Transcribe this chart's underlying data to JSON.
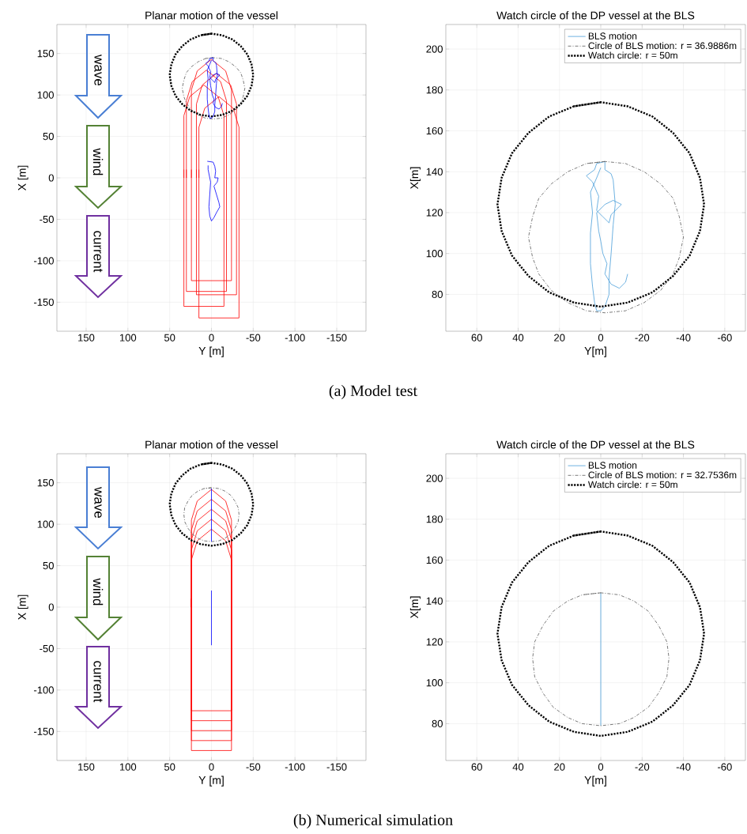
{
  "chart_data": [
    {
      "type": "line",
      "title": "Planar motion of the vessel",
      "xlabel": "Y [m]",
      "ylabel": "X [m]",
      "xlim": [
        185,
        -185
      ],
      "ylim": [
        -185,
        185
      ],
      "xticks": [
        150,
        100,
        50,
        0,
        -50,
        -100,
        -150
      ],
      "yticks": [
        -150,
        -100,
        -50,
        0,
        50,
        100,
        150
      ],
      "grid": true,
      "annotations": [
        "wave",
        "wind",
        "current",
        "(a) Model test"
      ],
      "series": [
        {
          "color": "#ff0000",
          "line_style": "solid",
          "x": [
            24,
            24,
            17,
            0,
            -17,
            -24,
            -24,
            24,
            24
          ],
          "values": [
            0,
            106,
            129,
            143,
            129,
            106,
            -124,
            -124,
            10
          ]
        },
        {
          "color": "#ff0000",
          "line_style": "solid",
          "x": [
            30,
            30,
            23,
            6,
            -11,
            -18,
            -18,
            30,
            30
          ],
          "values": [
            0,
            93,
            116,
            130,
            116,
            93,
            -137,
            -137,
            10
          ]
        },
        {
          "color": "#ff0000",
          "line_style": "solid",
          "x": [
            18,
            18,
            11,
            -6,
            -23,
            -30,
            -30,
            18,
            18
          ],
          "values": [
            0,
            89,
            112,
            126,
            112,
            89,
            -141,
            -141,
            10
          ]
        },
        {
          "color": "#ff0000",
          "line_style": "solid",
          "x": [
            33,
            33,
            26,
            9,
            -8,
            -15,
            -15,
            33,
            33
          ],
          "values": [
            0,
            75,
            98,
            112,
            98,
            75,
            -155,
            -155,
            10
          ]
        },
        {
          "color": "#ff0000",
          "line_style": "solid",
          "x": [
            15,
            15,
            8,
            -9,
            -26,
            -33,
            -33,
            15,
            15
          ],
          "values": [
            0,
            61,
            84,
            98,
            84,
            61,
            -169,
            -169,
            10
          ]
        },
        {
          "color": "#595959",
          "line_style": "dashdot",
          "x": [
            -2,
            7,
            16,
            24,
            30,
            33,
            35,
            33,
            30,
            24,
            16,
            7,
            -2,
            -12,
            -21,
            -29,
            -35,
            -38,
            -40,
            -38,
            -35,
            -29,
            -21,
            -12,
            -2,
            7
          ],
          "values": [
            145,
            144,
            140,
            134,
            127,
            118,
            108,
            98,
            90,
            82,
            76,
            72,
            71,
            72,
            76,
            82,
            90,
            98,
            108,
            118,
            127,
            134,
            140,
            144,
            145,
            144
          ]
        },
        {
          "color": "#000000",
          "line_style": "dotted",
          "x": [
            0,
            13,
            25,
            35,
            43,
            48,
            50,
            48,
            43,
            35,
            25,
            13,
            0,
            -13,
            -25,
            -35,
            -43,
            -48,
            -50,
            -48,
            -43,
            -35,
            -25,
            -13,
            0,
            13
          ],
          "values": [
            174,
            172,
            167,
            159,
            149,
            137,
            124,
            111,
            99,
            89,
            81,
            76,
            74,
            76,
            81,
            89,
            99,
            111,
            124,
            137,
            149,
            159,
            167,
            172,
            174,
            172
          ]
        },
        {
          "color": "#0000ff",
          "line_style": "solid",
          "x": [
            -13,
            -12,
            -9,
            -5,
            -2,
            -3,
            -1,
            0,
            1,
            2,
            -2,
            -6,
            -10,
            -8,
            -5,
            -4,
            -1,
            2,
            1,
            4,
            7,
            3,
            2,
            -2,
            -2,
            -5,
            -6,
            -7,
            -6,
            -5,
            -4,
            -4,
            -2,
            0,
            2,
            3,
            4,
            5,
            5,
            4,
            5,
            2,
            0
          ],
          "values": [
            90,
            86,
            83,
            85,
            90,
            95,
            100,
            106,
            111,
            120,
            124,
            126,
            124,
            122,
            119,
            115,
            118,
            121,
            128,
            135,
            138,
            141,
            144,
            145,
            141,
            139,
            136,
            124,
            114,
            100,
            88,
            80,
            74,
            72,
            72,
            76,
            84,
            95,
            110,
            120,
            130,
            137,
            142
          ]
        },
        {
          "color": "#0000ff",
          "line_style": "solid",
          "x": [
            5,
            -2,
            -4,
            -5,
            -4,
            -8,
            -7,
            -3,
            -9,
            -10,
            -6,
            -3,
            0,
            2,
            3,
            2,
            1,
            4,
            4
          ],
          "values": [
            20,
            19,
            14,
            8,
            0,
            0,
            -5,
            -10,
            -30,
            -35,
            -42,
            -48,
            -52,
            -46,
            -35,
            -20,
            -5,
            10,
            15
          ]
        }
      ]
    },
    {
      "type": "line",
      "title": "Watch circle of the DP vessel at the BLS",
      "xlabel": "Y[m]",
      "ylabel": "X[m]",
      "xlim": [
        75,
        -70
      ],
      "ylim": [
        62,
        212
      ],
      "xticks": [
        60,
        40,
        20,
        0,
        -20,
        -40,
        -60
      ],
      "yticks": [
        80,
        100,
        120,
        140,
        160,
        180,
        200
      ],
      "grid": true,
      "legend": "top right",
      "series": [
        {
          "name": "BLS motion",
          "color": "#4a9ed9",
          "line_style": "solid",
          "x": [
            -13,
            -12,
            -9,
            -5,
            -2,
            -3,
            -1,
            0,
            1,
            2,
            -2,
            -6,
            -10,
            -8,
            -5,
            -4,
            -1,
            2,
            1,
            4,
            7,
            3,
            2,
            -2,
            -2,
            -5,
            -6,
            -7,
            -6,
            -5,
            -4,
            -4,
            -2,
            0,
            2,
            3,
            4,
            5,
            5,
            4,
            5,
            2,
            0
          ],
          "values": [
            90,
            86,
            83,
            85,
            90,
            95,
            100,
            106,
            111,
            120,
            124,
            126,
            124,
            122,
            119,
            115,
            118,
            121,
            128,
            135,
            138,
            141,
            144,
            145,
            141,
            139,
            136,
            124,
            114,
            100,
            88,
            80,
            74,
            72,
            72,
            76,
            84,
            95,
            110,
            120,
            130,
            137,
            142
          ]
        },
        {
          "name": "Circle of BLS motion: r = 36.9886m",
          "color": "#595959",
          "line_style": "dashdot",
          "x": [
            -2,
            7,
            16,
            24,
            30,
            33,
            35,
            33,
            30,
            24,
            16,
            7,
            -2,
            -12,
            -21,
            -29,
            -35,
            -38,
            -40,
            -38,
            -35,
            -29,
            -21,
            -12,
            -2,
            7
          ],
          "values": [
            145,
            144,
            140,
            134,
            127,
            118,
            108,
            98,
            90,
            82,
            76,
            72,
            71,
            72,
            76,
            82,
            90,
            98,
            108,
            118,
            127,
            134,
            140,
            144,
            145,
            144
          ]
        },
        {
          "name": "Watch circle: r = 50m",
          "color": "#000000",
          "line_style": "dotted",
          "x": [
            0,
            13,
            25,
            35,
            43,
            48,
            50,
            48,
            43,
            35,
            25,
            13,
            0,
            -13,
            -25,
            -35,
            -43,
            -48,
            -50,
            -48,
            -43,
            -35,
            -25,
            -13,
            0,
            13
          ],
          "values": [
            174,
            172,
            167,
            159,
            149,
            137,
            124,
            111,
            99,
            89,
            81,
            76,
            74,
            76,
            81,
            89,
            99,
            111,
            124,
            137,
            149,
            159,
            167,
            172,
            174,
            172
          ]
        }
      ]
    },
    {
      "type": "line",
      "title": "Planar motion of the vessel",
      "xlabel": "Y [m]",
      "ylabel": "X [m]",
      "xlim": [
        185,
        -185
      ],
      "ylim": [
        -185,
        185
      ],
      "xticks": [
        150,
        100,
        50,
        0,
        -50,
        -100,
        -150
      ],
      "yticks": [
        -150,
        -100,
        -50,
        0,
        50,
        100,
        150
      ],
      "grid": true,
      "annotations": [
        "wave",
        "wind",
        "current",
        "(b) Numerical simulation"
      ],
      "series": [
        {
          "color": "#ff0000",
          "line_style": "solid",
          "x": [
            24,
            24,
            17,
            0,
            -17,
            -24,
            -24,
            24,
            24
          ],
          "values": [
            0,
            105,
            128,
            142,
            128,
            105,
            -125,
            -125,
            10
          ]
        },
        {
          "color": "#ff0000",
          "line_style": "solid",
          "x": [
            24,
            24,
            17,
            0,
            -17,
            -24,
            -24,
            24,
            24
          ],
          "values": [
            0,
            93,
            116,
            130,
            116,
            93,
            -137,
            -137,
            10
          ]
        },
        {
          "color": "#ff0000",
          "line_style": "solid",
          "x": [
            24,
            24,
            17,
            0,
            -17,
            -24,
            -24,
            24,
            24
          ],
          "values": [
            0,
            81,
            104,
            118,
            104,
            81,
            -149,
            -149,
            10
          ]
        },
        {
          "color": "#ff0000",
          "line_style": "solid",
          "x": [
            24,
            24,
            17,
            0,
            -17,
            -24,
            -24,
            24,
            24
          ],
          "values": [
            0,
            69,
            92,
            106,
            92,
            69,
            -161,
            -161,
            10
          ]
        },
        {
          "color": "#ff0000",
          "line_style": "solid",
          "x": [
            24,
            24,
            17,
            0,
            -17,
            -24,
            -24,
            24,
            24
          ],
          "values": [
            0,
            57,
            80,
            94,
            80,
            57,
            -173,
            -173,
            10
          ]
        },
        {
          "color": "#595959",
          "line_style": "dashdot",
          "x": [
            0,
            9,
            16,
            23,
            28,
            32,
            33,
            32,
            28,
            23,
            16,
            9,
            0,
            -9,
            -16,
            -23,
            -28,
            -32,
            -33,
            -32,
            -28,
            -23,
            -16,
            -9,
            0,
            9
          ],
          "values": [
            144,
            143,
            140,
            135,
            128,
            120,
            112,
            103,
            95,
            88,
            83,
            80,
            79,
            80,
            83,
            88,
            95,
            103,
            112,
            120,
            128,
            135,
            140,
            143,
            144,
            143
          ]
        },
        {
          "color": "#000000",
          "line_style": "dotted",
          "x": [
            0,
            13,
            25,
            35,
            43,
            48,
            50,
            48,
            43,
            35,
            25,
            13,
            0,
            -13,
            -25,
            -35,
            -43,
            -48,
            -50,
            -48,
            -43,
            -35,
            -25,
            -13,
            0,
            13
          ],
          "values": [
            174,
            172,
            167,
            159,
            149,
            137,
            124,
            111,
            99,
            89,
            81,
            76,
            74,
            76,
            81,
            89,
            99,
            111,
            124,
            137,
            149,
            159,
            167,
            172,
            174,
            172
          ]
        },
        {
          "color": "#0000ff",
          "line_style": "solid",
          "x": [
            0,
            0
          ],
          "values": [
            79,
            143
          ]
        },
        {
          "color": "#0000ff",
          "line_style": "solid",
          "x": [
            0,
            0
          ],
          "values": [
            -46,
            20
          ]
        }
      ]
    },
    {
      "type": "line",
      "title": "Watch circle of the DP vessel at the BLS",
      "xlabel": "Y[m]",
      "ylabel": "X[m]",
      "xlim": [
        75,
        -70
      ],
      "ylim": [
        62,
        212
      ],
      "xticks": [
        60,
        40,
        20,
        0,
        -20,
        -40,
        -60
      ],
      "yticks": [
        80,
        100,
        120,
        140,
        160,
        180,
        200
      ],
      "grid": true,
      "legend": "top right",
      "series": [
        {
          "name": "BLS motion",
          "color": "#4a9ed9",
          "line_style": "solid",
          "x": [
            0,
            0
          ],
          "values": [
            79,
            144
          ]
        },
        {
          "name": "Circle of BLS motion: r = 32.7536m",
          "color": "#595959",
          "line_style": "dashdot",
          "x": [
            0,
            9,
            16,
            23,
            28,
            32,
            33,
            32,
            28,
            23,
            16,
            9,
            0,
            -9,
            -16,
            -23,
            -28,
            -32,
            -33,
            -32,
            -28,
            -23,
            -16,
            -9,
            0,
            9
          ],
          "values": [
            144,
            143,
            140,
            135,
            128,
            120,
            112,
            103,
            95,
            88,
            83,
            80,
            79,
            80,
            83,
            88,
            95,
            103,
            112,
            120,
            128,
            135,
            140,
            143,
            144,
            143
          ]
        },
        {
          "name": "Watch circle: r = 50m",
          "color": "#000000",
          "line_style": "dotted",
          "x": [
            0,
            13,
            25,
            35,
            43,
            48,
            50,
            48,
            43,
            35,
            25,
            13,
            0,
            -13,
            -25,
            -35,
            -43,
            -48,
            -50,
            -48,
            -43,
            -35,
            -25,
            -13,
            0,
            13
          ],
          "values": [
            174,
            172,
            167,
            159,
            149,
            137,
            124,
            111,
            99,
            89,
            81,
            76,
            74,
            76,
            81,
            89,
            99,
            111,
            124,
            137,
            149,
            159,
            167,
            172,
            174,
            172
          ]
        }
      ]
    }
  ]
}
